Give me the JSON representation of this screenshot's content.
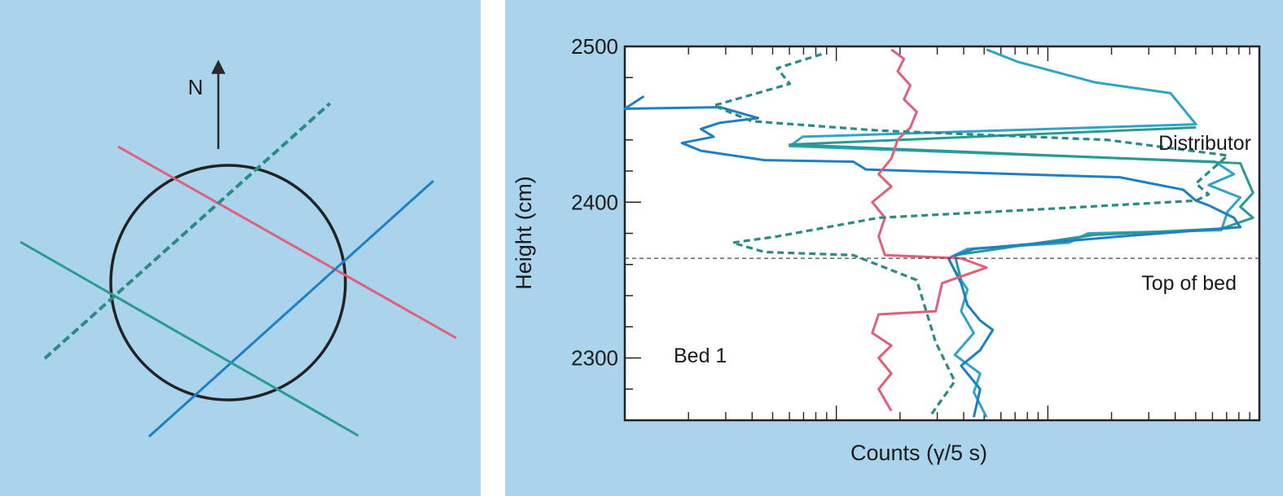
{
  "colors": {
    "panel_bg": "#a9d4ec",
    "plot_bg": "#ffffff",
    "red": "#e0607a",
    "blue": "#1f7fc4",
    "teal": "#2a9a90",
    "cyan": "#2fa3c8",
    "dashed": "#2a8a84",
    "black": "#222222"
  },
  "left_panel": {
    "north_label": "N",
    "icons": [
      "north-arrow-icon"
    ]
  },
  "chart_data": {
    "type": "line",
    "orientation": "vertical-profile",
    "xlabel": "Counts (γ/5 s)",
    "ylabel": "Height (cm)",
    "x_scale": "log",
    "x_tick_labels": [],
    "ylim": [
      2260,
      2500
    ],
    "y_ticks": [
      2300,
      2400,
      2500
    ],
    "grid": false,
    "annotations": {
      "distributor": "Distributor",
      "top_of_bed": "Top of bed",
      "bed": "Bed 1"
    },
    "reference_lines": [
      {
        "label": "Top of bed",
        "y": 2364
      }
    ],
    "series": [
      {
        "color_key": "cyan",
        "style": "solid",
        "points": [
          {
            "x": 0.57,
            "y": 2498
          },
          {
            "x": 0.62,
            "y": 2490
          },
          {
            "x": 0.74,
            "y": 2477
          },
          {
            "x": 0.86,
            "y": 2470
          },
          {
            "x": 0.9,
            "y": 2450
          },
          {
            "x": 0.28,
            "y": 2442
          },
          {
            "x": 0.26,
            "y": 2436
          },
          {
            "x": 0.93,
            "y": 2426
          },
          {
            "x": 0.96,
            "y": 2418
          },
          {
            "x": 0.92,
            "y": 2411
          },
          {
            "x": 0.97,
            "y": 2403
          },
          {
            "x": 0.95,
            "y": 2394
          },
          {
            "x": 0.94,
            "y": 2382
          },
          {
            "x": 0.73,
            "y": 2380
          },
          {
            "x": 0.7,
            "y": 2374
          },
          {
            "x": 0.54,
            "y": 2370
          },
          {
            "x": 0.51,
            "y": 2364
          },
          {
            "x": 0.52,
            "y": 2356
          },
          {
            "x": 0.54,
            "y": 2344
          },
          {
            "x": 0.53,
            "y": 2330
          },
          {
            "x": 0.55,
            "y": 2316
          },
          {
            "x": 0.52,
            "y": 2302
          },
          {
            "x": 0.56,
            "y": 2290
          },
          {
            "x": 0.55,
            "y": 2278
          },
          {
            "x": 0.57,
            "y": 2262
          }
        ]
      },
      {
        "color_key": "teal",
        "style": "solid",
        "points": [
          {
            "x": 0.9,
            "y": 2448
          },
          {
            "x": 0.26,
            "y": 2437
          },
          {
            "x": 0.97,
            "y": 2425
          },
          {
            "x": 0.99,
            "y": 2406
          },
          {
            "x": 0.97,
            "y": 2397
          },
          {
            "x": 0.99,
            "y": 2390
          },
          {
            "x": 0.94,
            "y": 2383
          },
          {
            "x": 0.74,
            "y": 2379
          },
          {
            "x": 0.52,
            "y": 2366
          },
          {
            "x": 0.53,
            "y": 2350
          }
        ]
      },
      {
        "color_key": "blue",
        "style": "solid",
        "points": [
          {
            "x": 0.03,
            "y": 2468
          },
          {
            "x": 0.0,
            "y": 2460
          },
          {
            "x": 0.15,
            "y": 2461
          },
          {
            "x": 0.21,
            "y": 2454
          },
          {
            "x": 0.15,
            "y": 2451
          },
          {
            "x": 0.12,
            "y": 2447
          },
          {
            "x": 0.14,
            "y": 2442
          },
          {
            "x": 0.09,
            "y": 2438
          },
          {
            "x": 0.12,
            "y": 2433
          },
          {
            "x": 0.22,
            "y": 2427
          },
          {
            "x": 0.36,
            "y": 2426
          },
          {
            "x": 0.38,
            "y": 2421
          },
          {
            "x": 0.78,
            "y": 2416
          },
          {
            "x": 0.88,
            "y": 2408
          },
          {
            "x": 0.9,
            "y": 2401
          },
          {
            "x": 0.92,
            "y": 2398
          },
          {
            "x": 0.96,
            "y": 2390
          },
          {
            "x": 0.97,
            "y": 2384
          },
          {
            "x": 0.78,
            "y": 2378
          },
          {
            "x": 0.55,
            "y": 2370
          },
          {
            "x": 0.51,
            "y": 2364
          },
          {
            "x": 0.53,
            "y": 2348
          },
          {
            "x": 0.54,
            "y": 2334
          },
          {
            "x": 0.56,
            "y": 2324
          },
          {
            "x": 0.58,
            "y": 2318
          },
          {
            "x": 0.56,
            "y": 2305
          },
          {
            "x": 0.53,
            "y": 2295
          },
          {
            "x": 0.56,
            "y": 2280
          },
          {
            "x": 0.55,
            "y": 2262
          }
        ]
      },
      {
        "color_key": "red",
        "style": "solid",
        "points": [
          {
            "x": 0.42,
            "y": 2498
          },
          {
            "x": 0.44,
            "y": 2492
          },
          {
            "x": 0.43,
            "y": 2484
          },
          {
            "x": 0.45,
            "y": 2475
          },
          {
            "x": 0.44,
            "y": 2466
          },
          {
            "x": 0.46,
            "y": 2458
          },
          {
            "x": 0.45,
            "y": 2448
          },
          {
            "x": 0.43,
            "y": 2440
          },
          {
            "x": 0.42,
            "y": 2428
          },
          {
            "x": 0.4,
            "y": 2418
          },
          {
            "x": 0.42,
            "y": 2410
          },
          {
            "x": 0.39,
            "y": 2400
          },
          {
            "x": 0.41,
            "y": 2390
          },
          {
            "x": 0.4,
            "y": 2378
          },
          {
            "x": 0.41,
            "y": 2366
          },
          {
            "x": 0.53,
            "y": 2364
          },
          {
            "x": 0.57,
            "y": 2358
          },
          {
            "x": 0.5,
            "y": 2348
          },
          {
            "x": 0.49,
            "y": 2330
          },
          {
            "x": 0.4,
            "y": 2328
          },
          {
            "x": 0.39,
            "y": 2316
          },
          {
            "x": 0.42,
            "y": 2308
          },
          {
            "x": 0.4,
            "y": 2300
          },
          {
            "x": 0.42,
            "y": 2290
          },
          {
            "x": 0.4,
            "y": 2280
          },
          {
            "x": 0.42,
            "y": 2266
          }
        ]
      },
      {
        "color_key": "dashed",
        "style": "dashed",
        "points": [
          {
            "x": 0.31,
            "y": 2495
          },
          {
            "x": 0.24,
            "y": 2486
          },
          {
            "x": 0.26,
            "y": 2476
          },
          {
            "x": 0.14,
            "y": 2462
          },
          {
            "x": 0.2,
            "y": 2452
          },
          {
            "x": 0.4,
            "y": 2446
          },
          {
            "x": 0.76,
            "y": 2440
          },
          {
            "x": 0.95,
            "y": 2430
          },
          {
            "x": 0.9,
            "y": 2412
          },
          {
            "x": 0.92,
            "y": 2405
          },
          {
            "x": 0.9,
            "y": 2401
          },
          {
            "x": 0.68,
            "y": 2396
          },
          {
            "x": 0.4,
            "y": 2390
          },
          {
            "x": 0.24,
            "y": 2378
          },
          {
            "x": 0.17,
            "y": 2374
          },
          {
            "x": 0.22,
            "y": 2368
          },
          {
            "x": 0.36,
            "y": 2366
          },
          {
            "x": 0.46,
            "y": 2350
          },
          {
            "x": 0.49,
            "y": 2310
          },
          {
            "x": 0.52,
            "y": 2285
          },
          {
            "x": 0.48,
            "y": 2262
          }
        ]
      }
    ]
  }
}
